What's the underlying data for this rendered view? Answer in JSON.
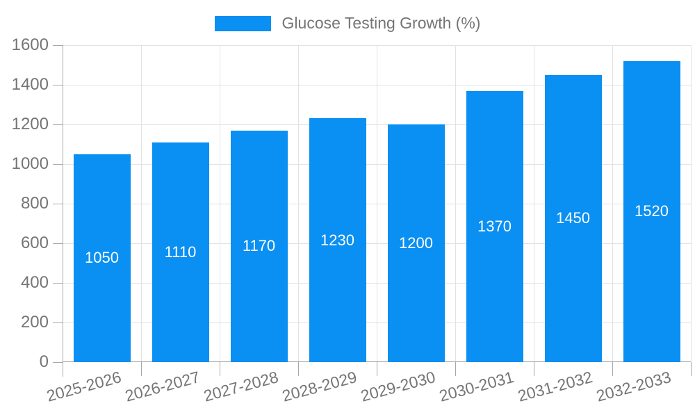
{
  "chart_data": {
    "type": "bar",
    "title": "Glucose Testing Growth (%)",
    "categories": [
      "2025-2026",
      "2026-2027",
      "2027-2028",
      "2028-2029",
      "2029-2030",
      "2030-2031",
      "2031-2032",
      "2032-2033"
    ],
    "series": [
      {
        "name": "Glucose Testing Growth (%)",
        "values": [
          1050,
          1110,
          1170,
          1230,
          1200,
          1370,
          1450,
          1520
        ]
      }
    ],
    "xlabel": "",
    "ylabel": "",
    "ylim": [
      0,
      1600
    ],
    "ytick_step": 200,
    "yticks": [
      0,
      200,
      400,
      600,
      800,
      1000,
      1200,
      1400,
      1600
    ],
    "grid": true,
    "legend_position": "top",
    "value_labels": "inside-center"
  },
  "colors": {
    "bar": "#0a8ff2",
    "grid": "#e2e2e2",
    "axis": "#a8a8a8",
    "text": "#757575",
    "value_label": "#ffffff",
    "background": "#ffffff"
  }
}
